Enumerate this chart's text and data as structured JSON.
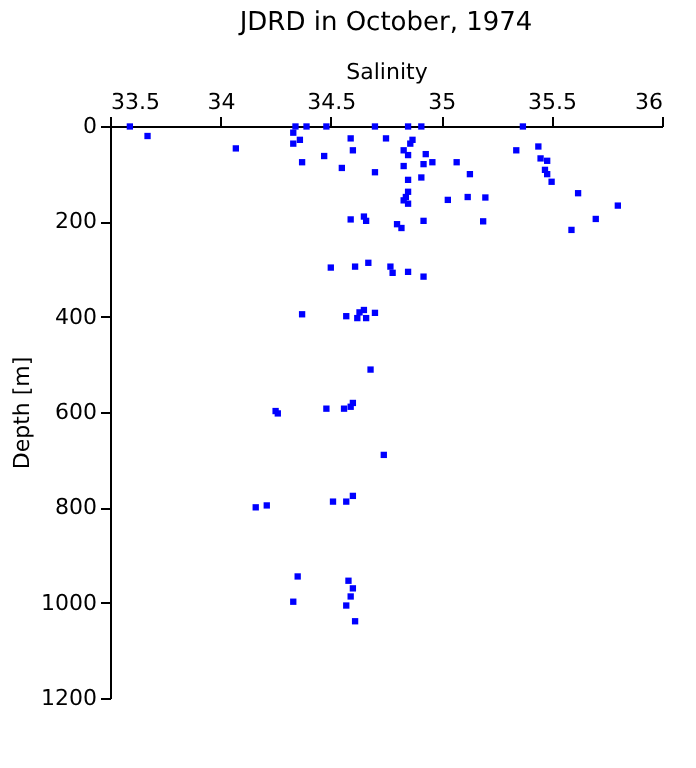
{
  "chart_data": {
    "type": "scatter",
    "title": "JDRD in October, 1974",
    "xlabel": "Salinity",
    "ylabel": "Depth [m]",
    "x": [
      33.59,
      33.67,
      34.07,
      34.34,
      34.33,
      34.39,
      34.36,
      34.33,
      34.48,
      34.37,
      34.47,
      34.59,
      34.6,
      34.55,
      34.7,
      34.75,
      34.7,
      34.85,
      34.91,
      34.87,
      34.86,
      34.83,
      34.85,
      34.93,
      34.83,
      34.92,
      34.96,
      34.91,
      34.85,
      34.85,
      34.84,
      34.83,
      34.85,
      35.07,
      35.13,
      35.03,
      35.12,
      35.2,
      35.37,
      35.34,
      35.44,
      35.45,
      35.48,
      35.47,
      35.48,
      35.5,
      35.62,
      35.8,
      35.7,
      35.59,
      35.19,
      34.92,
      34.8,
      34.82,
      34.59,
      34.66,
      34.65,
      34.5,
      34.61,
      34.67,
      34.77,
      34.78,
      34.85,
      34.92,
      34.37,
      34.57,
      34.62,
      34.63,
      34.65,
      34.66,
      34.7,
      34.68,
      34.25,
      34.26,
      34.48,
      34.56,
      34.59,
      34.6,
      34.74,
      34.16,
      34.21,
      34.51,
      34.57,
      34.6,
      34.35,
      34.33,
      34.58,
      34.6,
      34.59,
      34.57,
      34.61
    ],
    "values": [
      1,
      21,
      47,
      1,
      14,
      1,
      29,
      37,
      1,
      76,
      63,
      26,
      51,
      88,
      1,
      26,
      97,
      1,
      1,
      29,
      37,
      51,
      61,
      59,
      84,
      80,
      76,
      108,
      113,
      138,
      149,
      156,
      163,
      76,
      101,
      155,
      149,
      150,
      1,
      51,
      43,
      68,
      73,
      92,
      101,
      117,
      141,
      167,
      195,
      218,
      200,
      199,
      206,
      214,
      196,
      199,
      190,
      297,
      295,
      287,
      295,
      308,
      306,
      316,
      395,
      399,
      403,
      391,
      386,
      403,
      392,
      511,
      598,
      603,
      593,
      593,
      589,
      581,
      690,
      800,
      796,
      788,
      788,
      776,
      945,
      998,
      954,
      970,
      987,
      1006,
      1039
    ],
    "color": "#0000ff",
    "marker": "square",
    "xlim": [
      33.5,
      36
    ],
    "xticks": [
      33.5,
      34,
      34.5,
      35,
      35.5,
      36
    ],
    "ylim": [
      1200,
      0
    ],
    "yticks": [
      0,
      200,
      400,
      600,
      800,
      1000,
      1200
    ],
    "grid": false
  }
}
